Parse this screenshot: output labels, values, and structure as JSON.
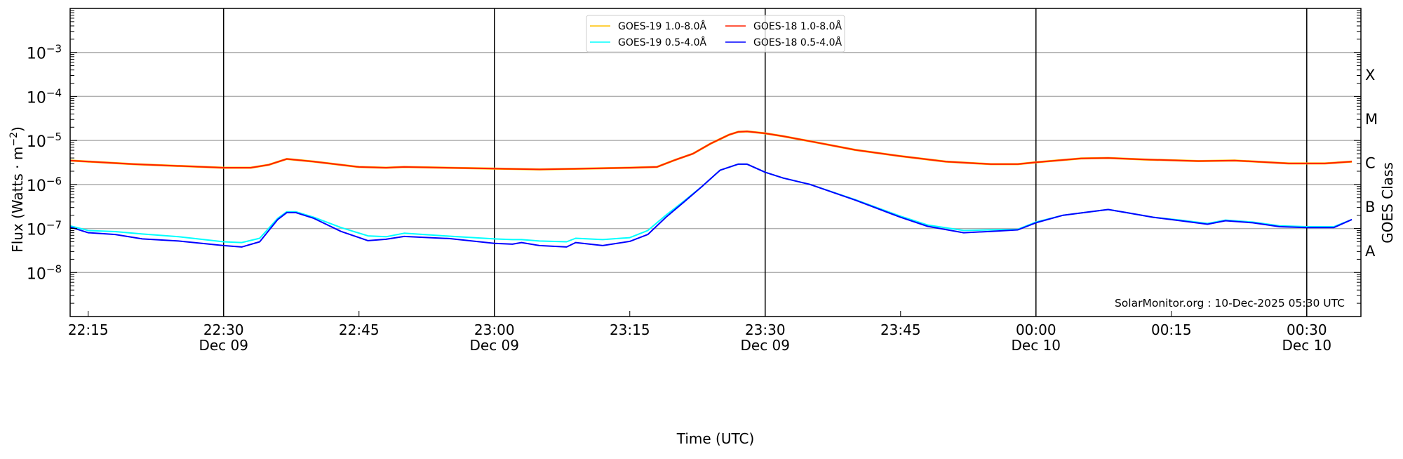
{
  "chart_data": {
    "type": "line",
    "title": "",
    "xlabel": "Time (UTC)",
    "ylabel_base": "Flux (Watts · m",
    "ylabel_exp": "−2",
    "ylabel_close": ")",
    "right_label": "GOES Class",
    "yscale": "log",
    "ylim": [
      1e-09,
      0.01
    ],
    "xlim": [
      "22:13",
      "00:36"
    ],
    "grid": "horizontal at decades",
    "legend_placement": "top-center",
    "y_ticks": [
      {
        "value": -3,
        "base": "10",
        "exp": "−3"
      },
      {
        "value": -4,
        "base": "10",
        "exp": "−4"
      },
      {
        "value": -5,
        "base": "10",
        "exp": "−5"
      },
      {
        "value": -6,
        "base": "10",
        "exp": "−6"
      },
      {
        "value": -7,
        "base": "10",
        "exp": "−7"
      },
      {
        "value": -8,
        "base": "10",
        "exp": "−8"
      }
    ],
    "classes": [
      {
        "label": "X",
        "value": -3.5
      },
      {
        "label": "M",
        "value": -4.5
      },
      {
        "label": "C",
        "value": -5.5
      },
      {
        "label": "B",
        "value": -6.5
      },
      {
        "label": "A",
        "value": -7.5
      }
    ],
    "x_ticks": [
      {
        "time": "22:15",
        "date": ""
      },
      {
        "time": "22:30",
        "date": "Dec 09"
      },
      {
        "time": "22:45",
        "date": ""
      },
      {
        "time": "23:00",
        "date": "Dec 09"
      },
      {
        "time": "23:15",
        "date": ""
      },
      {
        "time": "23:30",
        "date": "Dec 09"
      },
      {
        "time": "23:45",
        "date": ""
      },
      {
        "time": "00:00",
        "date": "Dec 10"
      },
      {
        "time": "00:15",
        "date": ""
      },
      {
        "time": "00:30",
        "date": "Dec 10"
      }
    ],
    "series": [
      {
        "name": "GOES-19 1.0-8.0Å",
        "color": "#ffc000",
        "x": [
          "22:13",
          "22:20",
          "22:30",
          "22:33",
          "22:35",
          "22:37",
          "22:40",
          "22:45",
          "22:48",
          "22:50",
          "23:00",
          "23:05",
          "23:10",
          "23:15",
          "23:18",
          "23:20",
          "23:22",
          "23:24",
          "23:26",
          "23:27",
          "23:28",
          "23:30",
          "23:32",
          "23:35",
          "23:40",
          "23:45",
          "23:50",
          "23:55",
          "23:58",
          "00:00",
          "00:05",
          "00:08",
          "00:12",
          "00:18",
          "00:22",
          "00:28",
          "00:32",
          "00:35"
        ],
        "values": [
          3.5e-06,
          2.9e-06,
          2.4e-06,
          2.4e-06,
          2.8e-06,
          3.8e-06,
          3.3e-06,
          2.5e-06,
          2.4e-06,
          2.5e-06,
          2.3e-06,
          2.2e-06,
          2.3e-06,
          2.4e-06,
          2.5e-06,
          3.6e-06,
          5e-06,
          8.6e-06,
          1.35e-05,
          1.57e-05,
          1.6e-05,
          1.45e-05,
          1.25e-05,
          9.6e-06,
          6.1e-06,
          4.4e-06,
          3.3e-06,
          2.9e-06,
          2.9e-06,
          3.2e-06,
          3.9e-06,
          4e-06,
          3.7e-06,
          3.4e-06,
          3.5e-06,
          3e-06,
          3e-06,
          3.3e-06
        ]
      },
      {
        "name": "GOES-18 1.0-8.0Å",
        "color": "#ff2000",
        "x": [
          "22:13",
          "22:20",
          "22:30",
          "22:33",
          "22:35",
          "22:37",
          "22:40",
          "22:45",
          "22:48",
          "22:50",
          "23:00",
          "23:05",
          "23:10",
          "23:15",
          "23:18",
          "23:20",
          "23:22",
          "23:24",
          "23:26",
          "23:27",
          "23:28",
          "23:30",
          "23:32",
          "23:35",
          "23:40",
          "23:45",
          "23:50",
          "23:55",
          "23:58",
          "00:00",
          "00:05",
          "00:08",
          "00:12",
          "00:18",
          "00:22",
          "00:28",
          "00:32",
          "00:35"
        ],
        "values": [
          3.5e-06,
          2.9e-06,
          2.4e-06,
          2.4e-06,
          2.8e-06,
          3.8e-06,
          3.3e-06,
          2.5e-06,
          2.4e-06,
          2.5e-06,
          2.3e-06,
          2.2e-06,
          2.3e-06,
          2.4e-06,
          2.5e-06,
          3.6e-06,
          5e-06,
          8.6e-06,
          1.35e-05,
          1.57e-05,
          1.6e-05,
          1.45e-05,
          1.25e-05,
          9.6e-06,
          6.1e-06,
          4.4e-06,
          3.3e-06,
          2.9e-06,
          2.9e-06,
          3.2e-06,
          3.9e-06,
          4e-06,
          3.7e-06,
          3.4e-06,
          3.5e-06,
          3e-06,
          3e-06,
          3.3e-06
        ]
      },
      {
        "name": "GOES-19 0.5-4.0Å",
        "color": "#00ffff",
        "x": [
          "22:13",
          "22:15",
          "22:18",
          "22:21",
          "22:25",
          "22:30",
          "22:32",
          "22:34",
          "22:36",
          "22:37",
          "22:38",
          "22:40",
          "22:43",
          "22:46",
          "22:48",
          "22:50",
          "22:55",
          "23:00",
          "23:02",
          "23:03",
          "23:05",
          "23:08",
          "23:09",
          "23:12",
          "23:15",
          "23:17",
          "23:19",
          "23:21",
          "23:23",
          "23:25",
          "23:27",
          "23:28",
          "23:30",
          "23:32",
          "23:35",
          "23:40",
          "23:45",
          "23:48",
          "23:52",
          "23:55",
          "23:58",
          "00:00",
          "00:03",
          "00:06",
          "00:08",
          "00:10",
          "00:13",
          "00:16",
          "00:19",
          "00:21",
          "00:24",
          "00:27",
          "00:30",
          "00:33",
          "00:35"
        ],
        "values": [
          1.15e-07,
          9e-08,
          8.5e-08,
          7.5e-08,
          6.5e-08,
          5e-08,
          4.8e-08,
          6e-08,
          1.7e-07,
          2.4e-07,
          2.4e-07,
          1.8e-07,
          1.05e-07,
          6.8e-08,
          6.5e-08,
          7.8e-08,
          6.7e-08,
          5.8e-08,
          5.6e-08,
          5.6e-08,
          5.2e-08,
          5e-08,
          6e-08,
          5.6e-08,
          6.2e-08,
          9e-08,
          2e-07,
          4.2e-07,
          9e-07,
          2.1e-06,
          2.9e-06,
          2.9e-06,
          1.9e-06,
          1.4e-06,
          1e-06,
          4.5e-07,
          1.9e-07,
          1.2e-07,
          9e-08,
          9.3e-08,
          9.6e-08,
          1.4e-07,
          2e-07,
          2.4e-07,
          2.7e-07,
          2.3e-07,
          1.8e-07,
          1.55e-07,
          1.3e-07,
          1.55e-07,
          1.4e-07,
          1.15e-07,
          1.1e-07,
          1.1e-07,
          1.6e-07
        ]
      },
      {
        "name": "GOES-18 0.5-4.0Å",
        "color": "#0000ff",
        "x": [
          "22:13",
          "22:15",
          "22:18",
          "22:21",
          "22:25",
          "22:30",
          "22:32",
          "22:34",
          "22:36",
          "22:37",
          "22:38",
          "22:40",
          "22:43",
          "22:46",
          "22:48",
          "22:50",
          "22:55",
          "23:00",
          "23:02",
          "23:03",
          "23:05",
          "23:08",
          "23:09",
          "23:12",
          "23:15",
          "23:17",
          "23:19",
          "23:21",
          "23:23",
          "23:25",
          "23:27",
          "23:28",
          "23:30",
          "23:32",
          "23:35",
          "23:40",
          "23:45",
          "23:48",
          "23:52",
          "23:55",
          "23:58",
          "00:00",
          "00:03",
          "00:06",
          "00:08",
          "00:10",
          "00:13",
          "00:16",
          "00:19",
          "00:21",
          "00:24",
          "00:27",
          "00:30",
          "00:33",
          "00:35"
        ],
        "values": [
          1.08e-07,
          8e-08,
          7.3e-08,
          5.8e-08,
          5.2e-08,
          4.1e-08,
          3.8e-08,
          5e-08,
          1.6e-07,
          2.3e-07,
          2.3e-07,
          1.7e-07,
          8.6e-08,
          5.3e-08,
          5.7e-08,
          6.6e-08,
          5.9e-08,
          4.6e-08,
          4.4e-08,
          4.8e-08,
          4.1e-08,
          3.8e-08,
          4.8e-08,
          4.1e-08,
          5.1e-08,
          7.3e-08,
          1.8e-07,
          4e-07,
          9e-07,
          2.1e-06,
          2.9e-06,
          2.9e-06,
          1.9e-06,
          1.4e-06,
          1e-06,
          4.4e-07,
          1.8e-07,
          1.12e-07,
          8e-08,
          8.6e-08,
          9.3e-08,
          1.35e-07,
          2e-07,
          2.4e-07,
          2.7e-07,
          2.3e-07,
          1.8e-07,
          1.5e-07,
          1.25e-07,
          1.5e-07,
          1.35e-07,
          1.1e-07,
          1.05e-07,
          1.05e-07,
          1.6e-07
        ]
      }
    ],
    "legend_order": [
      0,
      2,
      1,
      3
    ],
    "annotation": "SolarMonitor.org : 10-Dec-2025 05:30 UTC"
  }
}
